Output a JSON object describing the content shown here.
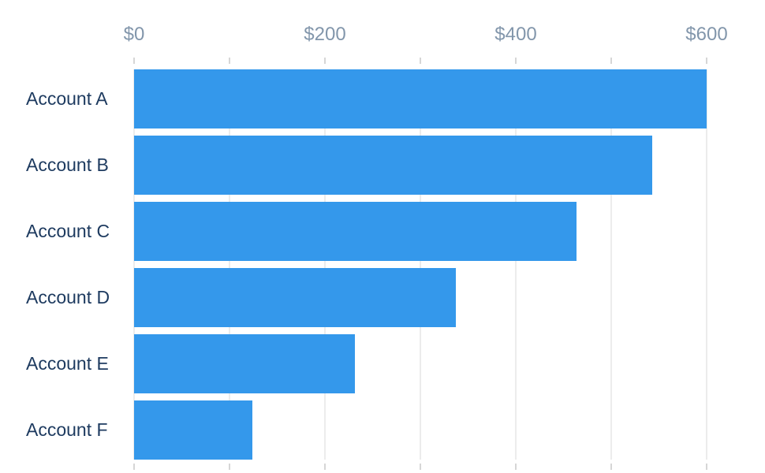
{
  "chart_data": {
    "type": "bar",
    "orientation": "horizontal",
    "title": "",
    "xlabel": "",
    "ylabel": "",
    "categories": [
      "Account A",
      "Account B",
      "Account C",
      "Account D",
      "Account E",
      "Account F"
    ],
    "values": [
      600,
      543,
      464,
      337,
      231,
      124
    ],
    "value_unit": "USD",
    "xlim": [
      0,
      600
    ],
    "x_ticks": [
      0,
      100,
      200,
      300,
      400,
      500,
      600
    ],
    "x_tick_labels": [
      {
        "value": 0,
        "label": "$0"
      },
      {
        "value": 200,
        "label": "$200"
      },
      {
        "value": 400,
        "label": "$400"
      },
      {
        "value": 600,
        "label": "$600"
      }
    ],
    "axis_position": "top",
    "grid": true,
    "legend": false
  },
  "colors": {
    "bar": "#3498eb",
    "category_label": "#1d3a5f",
    "axis_label": "#8296ab",
    "gridline": "#ececec",
    "tick": "#d6d6d6",
    "background": "#ffffff"
  }
}
